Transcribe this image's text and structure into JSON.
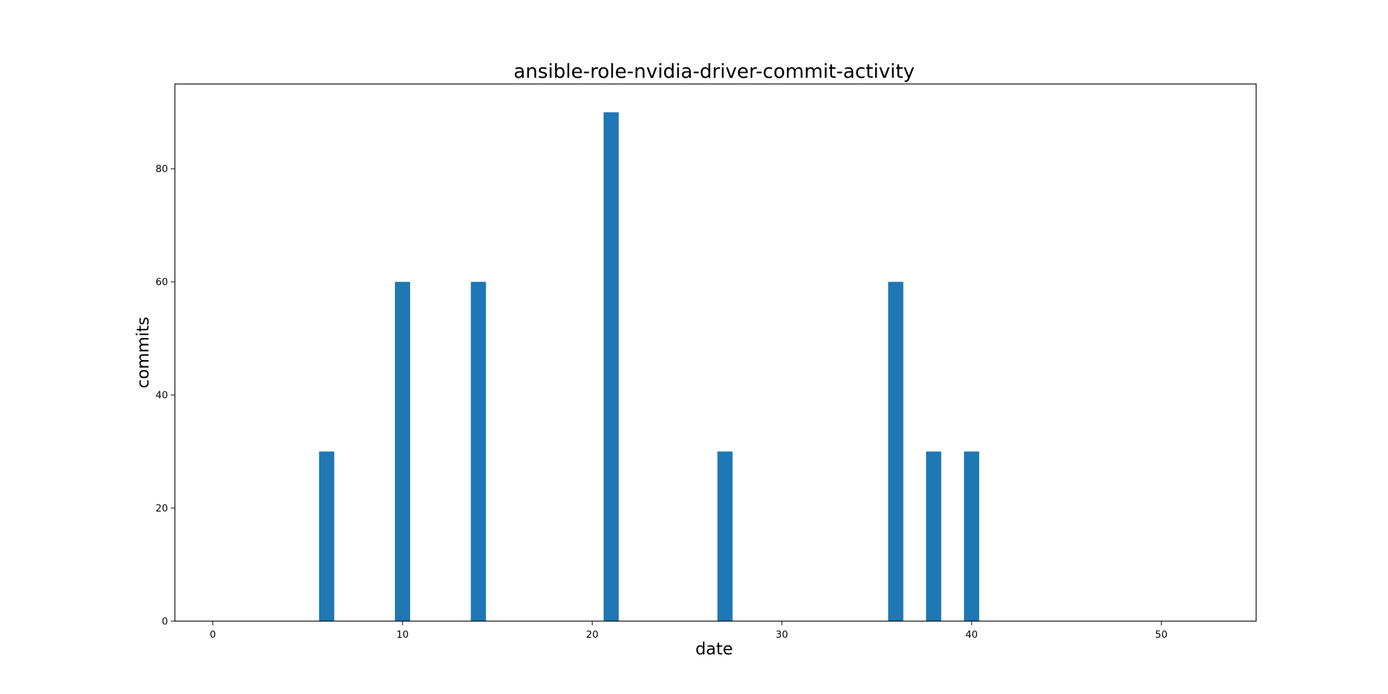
{
  "chart_data": {
    "type": "bar",
    "title": "ansible-role-nvidia-driver-commit-activity",
    "xlabel": "date",
    "ylabel": "commits",
    "x": [
      6,
      10,
      14,
      21,
      27,
      36,
      38,
      40
    ],
    "values": [
      30,
      60,
      60,
      90,
      30,
      60,
      30,
      30
    ],
    "xlim": [
      -2,
      55
    ],
    "ylim": [
      0,
      95
    ],
    "xticks": [
      0,
      10,
      20,
      30,
      40,
      50
    ],
    "yticks": [
      0,
      20,
      40,
      60,
      80
    ],
    "bar_width": 0.8,
    "bar_color": "#1f77b4",
    "grid": false,
    "legend": "none"
  }
}
